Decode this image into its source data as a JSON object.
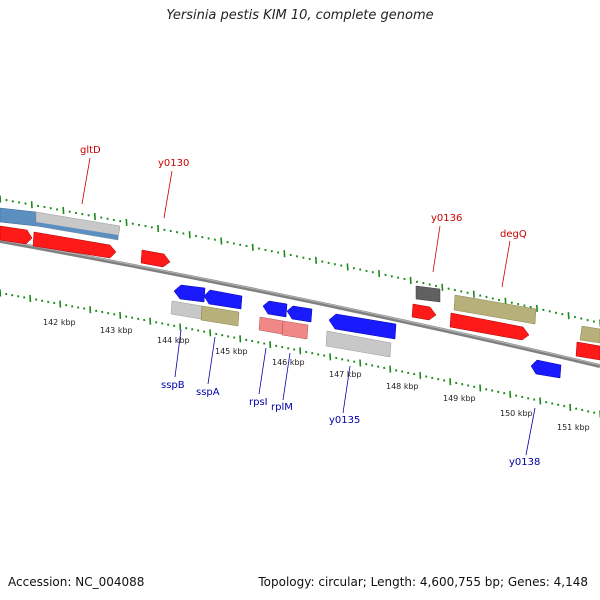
{
  "title": "Yersinia pestis KIM 10, complete genome",
  "footer": {
    "accession": "Accession: NC_004088",
    "topology": "Topology: circular; Length: 4,600,755 bp; Genes: 4,148"
  },
  "colors": {
    "forward_label": "#cc0000",
    "reverse_label": "#0000aa",
    "tick": "#1a8a1a",
    "backbone": "#808080",
    "red": "#ff1a1a",
    "blue": "#1a1aff",
    "grey": "#c8c8c8",
    "khaki": "#b8b07a",
    "pink": "#f08888",
    "steelblue": "#5a8fc0",
    "dark": "#606060"
  },
  "scale_labels": [
    "142 kbp",
    "143 kbp",
    "144 kbp",
    "145 kbp",
    "146 kbp",
    "147 kbp",
    "148 kbp",
    "149 kbp",
    "150 kbp",
    "151 kbp"
  ],
  "forward_gene_labels": [
    "gltD",
    "y0130",
    "y0136",
    "degQ"
  ],
  "reverse_gene_labels": [
    "sspB",
    "sspA",
    "rpsI",
    "rplM",
    "y0135",
    "y0138"
  ]
}
